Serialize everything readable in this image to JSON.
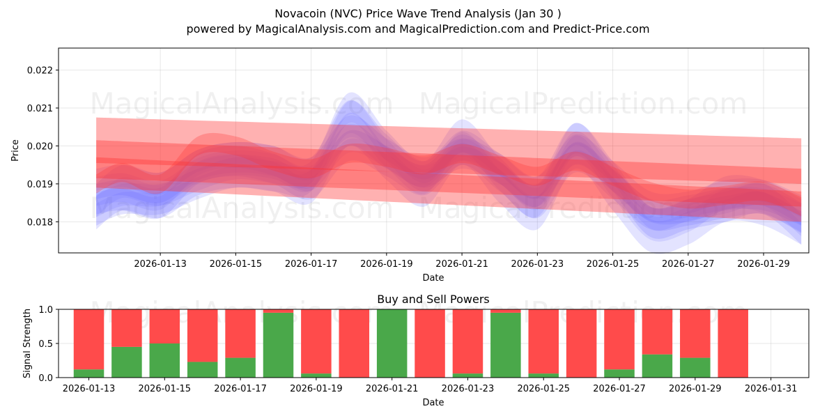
{
  "chart_data": [
    {
      "type": "area",
      "title_line1": "Novacoin (NVC) Price Wave Trend Analysis (Jan 30 )",
      "title_line2": "powered by MagicalAnalysis.com and MagicalPrediction.com and Predict-Price.com",
      "xlabel": "Date",
      "ylabel": "Price",
      "xlim": [
        -1.7,
        18.2
      ],
      "ylim": [
        0.01718,
        0.02258
      ],
      "x_ticks": [
        {
          "pos": 1,
          "label": "2026-01-13"
        },
        {
          "pos": 3,
          "label": "2026-01-15"
        },
        {
          "pos": 5,
          "label": "2026-01-17"
        },
        {
          "pos": 7,
          "label": "2026-01-19"
        },
        {
          "pos": 9,
          "label": "2026-01-21"
        },
        {
          "pos": 11,
          "label": "2026-01-23"
        },
        {
          "pos": 13,
          "label": "2026-01-25"
        },
        {
          "pos": 15,
          "label": "2026-01-27"
        },
        {
          "pos": 17,
          "label": "2026-01-29"
        }
      ],
      "y_ticks": [
        {
          "value": 0.018,
          "label": "0.018"
        },
        {
          "value": 0.019,
          "label": "0.019"
        },
        {
          "value": 0.02,
          "label": "0.020"
        },
        {
          "value": 0.021,
          "label": "0.021"
        },
        {
          "value": 0.022,
          "label": "0.022"
        }
      ],
      "x": [
        -0.7,
        0,
        1,
        2,
        3,
        4,
        5,
        6,
        7,
        8,
        9,
        10,
        11,
        12,
        13,
        14,
        15,
        16,
        17,
        18
      ],
      "blue_bands": [
        {
          "name": "wave-1",
          "center": [
            0.0183,
            0.0186,
            0.0186,
            0.019,
            0.0193,
            0.0192,
            0.0192,
            0.021,
            0.02,
            0.0192,
            0.02,
            0.0194,
            0.0188,
            0.0202,
            0.0192,
            0.018,
            0.0182,
            0.0184,
            0.0186,
            0.0178
          ],
          "width": 0.0004
        },
        {
          "name": "wave-2",
          "center": [
            0.0186,
            0.0187,
            0.0185,
            0.0194,
            0.0196,
            0.0194,
            0.019,
            0.02,
            0.0196,
            0.0191,
            0.0199,
            0.0192,
            0.0185,
            0.0197,
            0.019,
            0.0182,
            0.0183,
            0.0185,
            0.0186,
            0.0181
          ],
          "width": 0.0004
        },
        {
          "name": "wave-3",
          "center": [
            0.0184,
            0.0189,
            0.0187,
            0.0193,
            0.0195,
            0.0194,
            0.0191,
            0.0206,
            0.0197,
            0.019,
            0.0201,
            0.0191,
            0.0184,
            0.02,
            0.0189,
            0.0178,
            0.018,
            0.0186,
            0.0185,
            0.018
          ],
          "width": 0.0006
        },
        {
          "name": "wave-4",
          "center": [
            0.019,
            0.0191,
            0.0189,
            0.0195,
            0.0197,
            0.0196,
            0.0193,
            0.0204,
            0.0198,
            0.0193,
            0.0198,
            0.0194,
            0.0188,
            0.0199,
            0.0192,
            0.0184,
            0.0184,
            0.0187,
            0.0187,
            0.0183
          ],
          "width": 0.0004
        }
      ],
      "red_bands": [
        {
          "name": "trend-upper",
          "y_start": 0.02015,
          "y_end": 0.0196,
          "width": 0.0012
        },
        {
          "name": "trend-mid",
          "y_start": 0.01965,
          "y_end": 0.0189,
          "width": 0.001
        },
        {
          "name": "trend-lower",
          "y_start": 0.0193,
          "y_end": 0.0184,
          "width": 0.0008
        },
        {
          "name": "wave-red",
          "center": [
            0.019,
            0.0193,
            0.019,
            0.02,
            0.02,
            0.0196,
            0.0194,
            0.0198,
            0.0197,
            0.0195,
            0.0198,
            0.0195,
            0.0192,
            0.0196,
            0.0192,
            0.0188,
            0.0186,
            0.0187,
            0.0188,
            0.0184
          ],
          "width": 0.0005
        }
      ],
      "watermarks": [
        "MagicalAnalysis.com",
        "MagicalPrediction.com",
        "MagicalAnalysis.com",
        "MagicalPrediction.com"
      ]
    },
    {
      "type": "bar",
      "title": "Buy and Sell Powers",
      "xlabel": "Date",
      "ylabel": "Signal Strength",
      "xlim": [
        -0.8,
        19.0
      ],
      "ylim": [
        0,
        1
      ],
      "x_ticks": [
        {
          "pos": 0,
          "label": "2026-01-13"
        },
        {
          "pos": 2,
          "label": "2026-01-15"
        },
        {
          "pos": 4,
          "label": "2026-01-17"
        },
        {
          "pos": 6,
          "label": "2026-01-19"
        },
        {
          "pos": 8,
          "label": "2026-01-21"
        },
        {
          "pos": 10,
          "label": "2026-01-23"
        },
        {
          "pos": 12,
          "label": "2026-01-25"
        },
        {
          "pos": 14,
          "label": "2026-01-27"
        },
        {
          "pos": 16,
          "label": "2026-01-29"
        },
        {
          "pos": 18,
          "label": "2026-01-31"
        }
      ],
      "y_ticks": [
        {
          "value": 0.0,
          "label": "0.0"
        },
        {
          "value": 0.5,
          "label": "0.5"
        },
        {
          "value": 1.0,
          "label": "1.0"
        }
      ],
      "categories": [
        "2026-01-13",
        "2026-01-14",
        "2026-01-15",
        "2026-01-16",
        "2026-01-17",
        "2026-01-18",
        "2026-01-19",
        "2026-01-20",
        "2026-01-21",
        "2026-01-22",
        "2026-01-23",
        "2026-01-24",
        "2026-01-25",
        "2026-01-26",
        "2026-01-27",
        "2026-01-28",
        "2026-01-29",
        "2026-01-30"
      ],
      "series": [
        {
          "name": "Buy",
          "color": "#4aa84a",
          "values": [
            0.12,
            0.45,
            0.5,
            0.23,
            0.29,
            0.95,
            0.06,
            0.0,
            1.0,
            0.0,
            0.06,
            0.95,
            0.06,
            0.0,
            0.12,
            0.34,
            0.29,
            0.0
          ]
        },
        {
          "name": "Sell",
          "color": "#ff4b4b",
          "values": [
            0.88,
            0.55,
            0.5,
            0.77,
            0.71,
            0.05,
            0.94,
            1.0,
            0.0,
            1.0,
            0.94,
            0.05,
            0.94,
            1.0,
            0.88,
            0.66,
            0.71,
            1.0
          ]
        }
      ],
      "watermarks": [
        "MagicalAnalysis.com",
        "MagicalPrediction.com"
      ]
    }
  ],
  "colors": {
    "blue": "#6666ff",
    "red": "#ff3333",
    "buy": "#4aa84a",
    "sell": "#ff4b4b"
  }
}
